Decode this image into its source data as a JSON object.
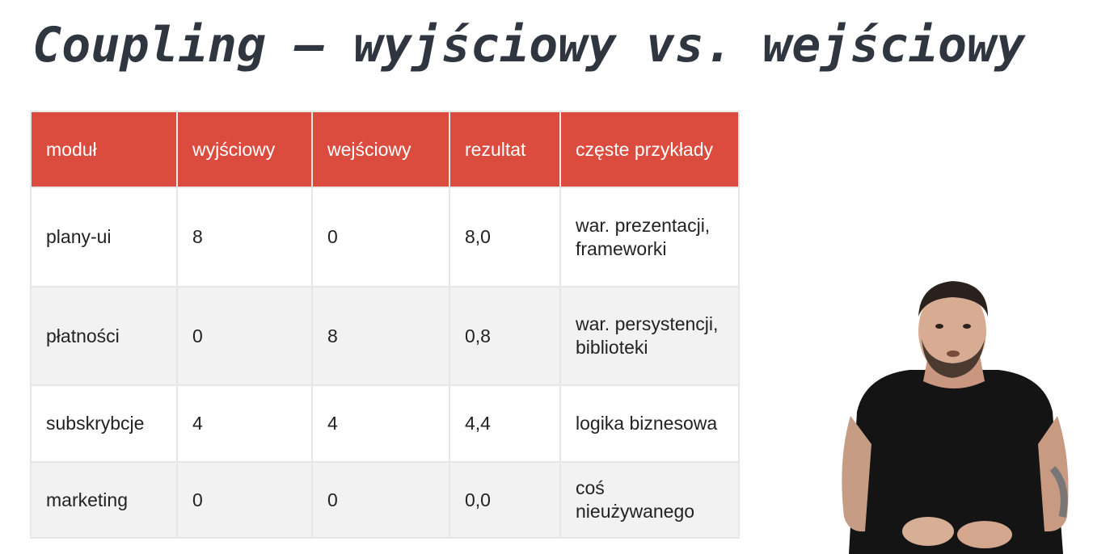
{
  "title": "Coupling – wyjściowy vs. wejściowy",
  "table": {
    "headers": [
      "moduł",
      "wyjściowy",
      "wejściowy",
      "rezultat",
      "częste przykłady"
    ],
    "rows": [
      [
        "plany-ui",
        "8",
        "0",
        "8,0",
        "war. prezentacji, frameworki"
      ],
      [
        "płatności",
        "0",
        "8",
        "0,8",
        "war. persystencji, biblioteki"
      ],
      [
        "subskrybcje",
        "4",
        "4",
        "4,4",
        "logika biznesowa"
      ],
      [
        "marketing",
        "0",
        "0",
        "0,0",
        "coś nieużywanego"
      ]
    ]
  },
  "colors": {
    "header_bg": "#db4b3e",
    "header_text": "#ffffff",
    "row_alt_bg": "#f2f2f2",
    "title_color": "#2f3640"
  },
  "presenter": {
    "icon": "presenter-person"
  }
}
